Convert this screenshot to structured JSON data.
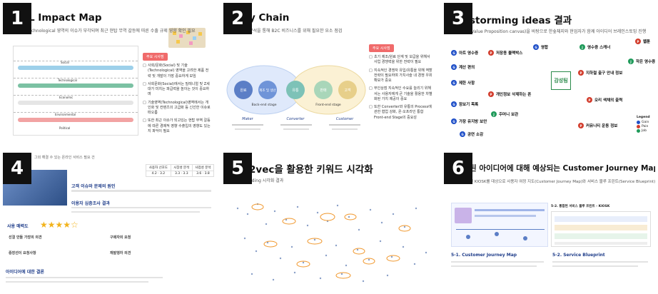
{
  "panels": {
    "p1": {
      "number": "1",
      "title": "L Impact Map",
      "subtitle": "echnological 영역의 이슈가 부각되며 최근 현탑 무역 갈등에 따른 수출 규제 영향 확인 필요",
      "tag": "주요 시사점",
      "lanes": [
        "Social",
        "Technological",
        "Economic",
        "Environmental",
        "Political"
      ],
      "bullets": [
        "사회/문화(Social) 및 기술(Technological) 영역을 고려한 제품 전략 및 개발이 가장 중요하게 보임",
        "사회문화(Social)에서는 밀레니얼 및 Z세대가 미치는 파급력을 높이는 것이 중요하며",
        "기술영역(Technological)영역에서는 개인화 및 컨텐츠의 고급화 등 신선한 이슈로 떠오름",
        "또한 최근 이슈가 되고있는 현탑 무역 갈등에 따른 경제적 영향 수출입의 영향도 있는지 파악이 필요"
      ]
    },
    "p2": {
      "number": "2",
      "title": "y Chain",
      "subtitle": "분석을 통해 B2C 비즈니스를 위해 필요한 요소 점검",
      "stages": [
        "Maker",
        "Converter",
        "Customer"
      ],
      "circles": [
        "원료",
        "제조 및 생산",
        "유통",
        "판매",
        "고객"
      ],
      "back_label": "Back-end stage",
      "front_label": "Front-end stage",
      "tag": "주요 시사점",
      "bullets": [
        "초기 제조/원료 단계 및 보급을 위해서 사업 경쟁력을 위한 전략이 필요",
        "지속적인 경쟁자 유입/유통을 위해 역할 전략이 필요하며 가치사슬 내 경쟁 우위 확보가 중요",
        "무인상점 지속적인 수요를 늘리기 위해서는 사용자에게 큰 기술을 활용한 차별화된 가치 제공이 중요",
        "또한 Converter와 유통의 Process에 관한 협업 강화, 온·오프라인 통합 Front-end Stage의 중요성"
      ]
    },
    "p3": {
      "number": "3",
      "title": "storming ideas 결과",
      "subtitle": "(Value Proposition canvas)을 바탕으로 한숲체지와 현업자가 함께 아이디어 브레인스토밍 진행",
      "nodes": [
        "아트 영수증",
        "저장용 블랙박스",
        "영합",
        "영수증 스캐너",
        "웹툰",
        "계산 편의",
        "작은 영수증",
        "지하철 출구 안내 정보",
        "제한 사항",
        "개인정보 삭제하는 폰",
        "오리 색채의 출력",
        "장보기 목록",
        "주머니 보관",
        "가장 유지방 보안",
        "공연 소감",
        "커뮤니티 운동 정보"
      ],
      "stamp": "감성팀",
      "legend_title": "Legend",
      "legend": [
        "Gain",
        "Pain",
        "Job"
      ]
    },
    "p4": {
      "number": "4",
      "header_text": "그외 해결 수 있는 온라인 서비스 필요 건",
      "scores": [
        "4.2",
        "3.2",
        "3.3",
        "3.3",
        "3.6",
        "3.8"
      ],
      "score_head": [
        "사용자 선호도",
        "시장성 분석",
        "사업성 분석"
      ],
      "section1": "고객 이슈와 문제의 원인",
      "section2": "이용자 심층조사 결과",
      "rating_label": "사용 매력도",
      "stars": "★★★★☆",
      "items": [
        "선결 안돌 가장의 의견",
        "중장선이 요청사항",
        "구매자의 요청",
        "재발행자 의견"
      ],
      "bottom_title": "아이디어에 대한 결론"
    },
    "p5": {
      "number": "5",
      "title": "2vec을 활용한 키워드 시각화",
      "subtitle": "dding 시각화 결과"
    },
    "p6": {
      "number": "6",
      "title": "된 아이디어에 대해 예상되는 Customer Journey Map과 Blueprint 작성",
      "subtitle": "된 KIOSK를 대상으로 사용자 여정 지도(Customer Journey Map)와 서비스 블루 프린트(Service Blueprint) 작성",
      "caption_left": "5-1. Customer Journey Map",
      "caption_right": "5-2. Service Blueprint",
      "inner_title": "5-2. 통합된 서비스 블루 프린트 - KIOSK"
    }
  }
}
